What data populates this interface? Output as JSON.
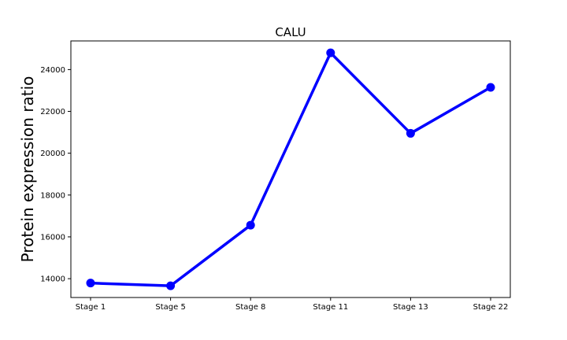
{
  "chart_data": {
    "type": "line",
    "title": "CALU",
    "xlabel": "",
    "ylabel": "Protein expression ratio",
    "categories": [
      "Stage 1",
      "Stage 5",
      "Stage 8",
      "Stage 11",
      "Stage 13",
      "Stage 22"
    ],
    "series": [
      {
        "values": [
          13790,
          13660,
          16560,
          24800,
          20950,
          23150
        ],
        "color": "#0000ff"
      }
    ],
    "ylim": [
      13100,
      25370
    ],
    "yticks": [
      14000,
      16000,
      18000,
      20000,
      22000,
      24000
    ],
    "grid": false,
    "legend": "none"
  }
}
